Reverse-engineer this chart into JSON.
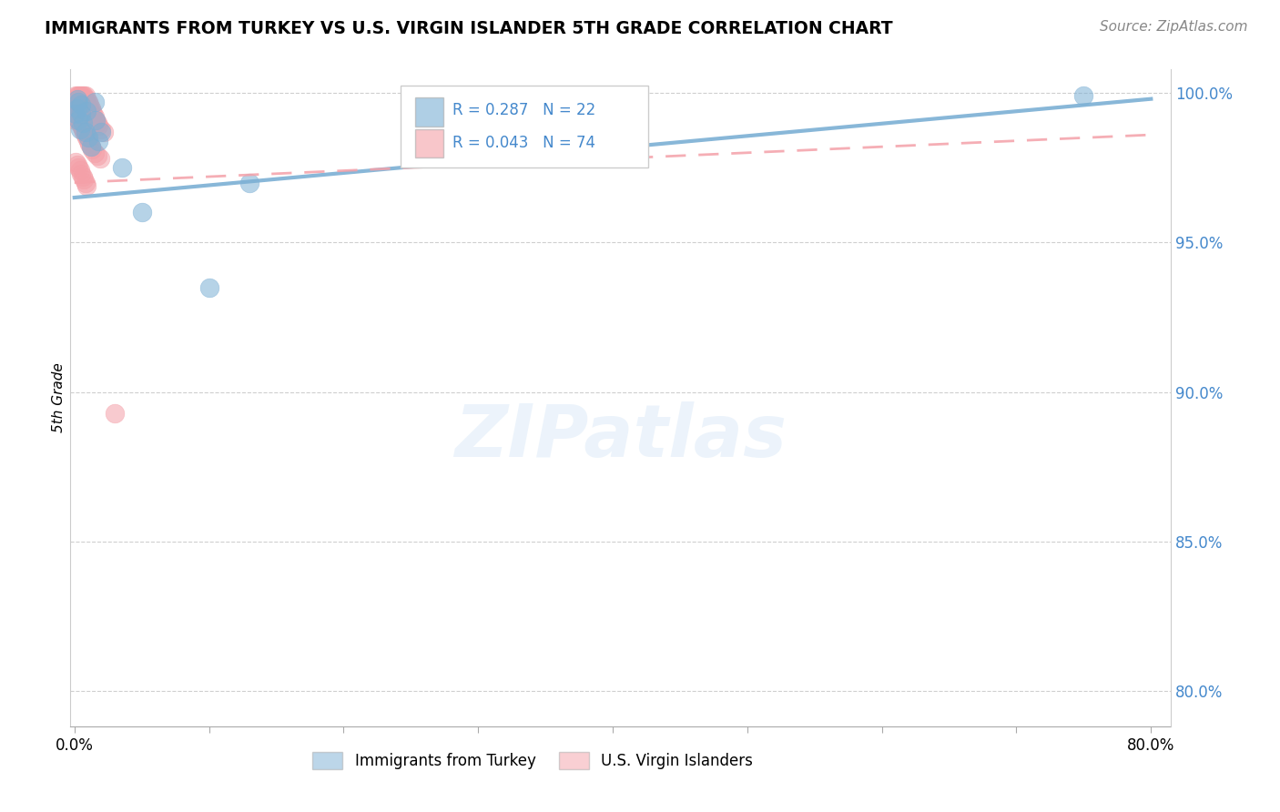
{
  "title": "IMMIGRANTS FROM TURKEY VS U.S. VIRGIN ISLANDER 5TH GRADE CORRELATION CHART",
  "source": "Source: ZipAtlas.com",
  "ylabel": "5th Grade",
  "xlim": [
    -0.003,
    0.815
  ],
  "ylim": [
    0.788,
    1.008
  ],
  "xticks": [
    0.0,
    0.1,
    0.2,
    0.3,
    0.4,
    0.5,
    0.6,
    0.7,
    0.8
  ],
  "xticklabels": [
    "0.0%",
    "",
    "",
    "",
    "",
    "",
    "",
    "",
    "80.0%"
  ],
  "yticks_right": [
    0.8,
    0.85,
    0.9,
    0.95,
    1.0
  ],
  "yticklabels_right": [
    "80.0%",
    "85.0%",
    "90.0%",
    "95.0%",
    "100.0%"
  ],
  "blue_color": "#7BAFD4",
  "pink_color": "#F4A0A8",
  "blue_label": "Immigrants from Turkey",
  "pink_label": "U.S. Virgin Islanders",
  "R_blue": 0.287,
  "N_blue": 22,
  "R_pink": 0.043,
  "N_pink": 74,
  "legend_text_color": "#4488CC",
  "watermark": "ZIPatlas",
  "blue_trend_x": [
    0.0,
    0.8
  ],
  "blue_trend_y": [
    0.965,
    0.998
  ],
  "pink_trend_x": [
    0.0,
    0.8
  ],
  "pink_trend_y": [
    0.97,
    0.986
  ],
  "blue_scatter_x": [
    0.001,
    0.002,
    0.002,
    0.003,
    0.003,
    0.004,
    0.005,
    0.005,
    0.006,
    0.008,
    0.009,
    0.01,
    0.012,
    0.015,
    0.016,
    0.018,
    0.02,
    0.035,
    0.05,
    0.1,
    0.13,
    0.75
  ],
  "blue_scatter_y": [
    0.993,
    0.998,
    0.995,
    0.991,
    0.997,
    0.988,
    0.996,
    0.993,
    0.99,
    0.987,
    0.994,
    0.985,
    0.982,
    0.997,
    0.991,
    0.984,
    0.987,
    0.975,
    0.96,
    0.935,
    0.97,
    0.999
  ],
  "pink_scatter_x": [
    0.001,
    0.001,
    0.001,
    0.001,
    0.001,
    0.001,
    0.001,
    0.001,
    0.001,
    0.002,
    0.002,
    0.002,
    0.002,
    0.002,
    0.002,
    0.003,
    0.003,
    0.003,
    0.003,
    0.003,
    0.004,
    0.004,
    0.004,
    0.004,
    0.005,
    0.005,
    0.005,
    0.006,
    0.006,
    0.006,
    0.007,
    0.007,
    0.008,
    0.008,
    0.009,
    0.009,
    0.01,
    0.01,
    0.011,
    0.012,
    0.013,
    0.014,
    0.015,
    0.016,
    0.017,
    0.018,
    0.02,
    0.022,
    0.001,
    0.002,
    0.003,
    0.004,
    0.005,
    0.006,
    0.007,
    0.008,
    0.009,
    0.01,
    0.011,
    0.012,
    0.013,
    0.015,
    0.017,
    0.019,
    0.001,
    0.002,
    0.003,
    0.004,
    0.005,
    0.006,
    0.007,
    0.008,
    0.009,
    0.03
  ],
  "pink_scatter_y": [
    0.999,
    0.998,
    0.997,
    0.996,
    0.995,
    0.994,
    0.993,
    0.992,
    0.991,
    0.999,
    0.998,
    0.997,
    0.996,
    0.995,
    0.994,
    0.999,
    0.998,
    0.997,
    0.996,
    0.995,
    0.999,
    0.998,
    0.997,
    0.996,
    0.999,
    0.998,
    0.997,
    0.999,
    0.998,
    0.997,
    0.999,
    0.998,
    0.999,
    0.997,
    0.998,
    0.996,
    0.997,
    0.995,
    0.996,
    0.995,
    0.994,
    0.993,
    0.992,
    0.991,
    0.99,
    0.989,
    0.988,
    0.987,
    0.993,
    0.992,
    0.991,
    0.99,
    0.989,
    0.988,
    0.987,
    0.986,
    0.985,
    0.984,
    0.983,
    0.982,
    0.981,
    0.98,
    0.979,
    0.978,
    0.977,
    0.976,
    0.975,
    0.974,
    0.973,
    0.972,
    0.971,
    0.97,
    0.969,
    0.893
  ]
}
